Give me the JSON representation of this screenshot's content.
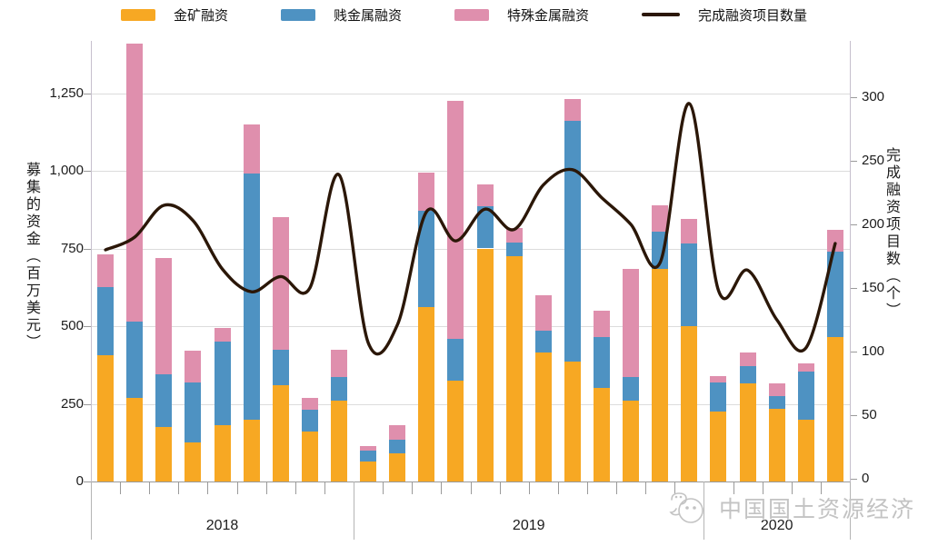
{
  "legend": {
    "items": [
      {
        "label": "金矿融资",
        "color": "#F7A823",
        "marker": "bar"
      },
      {
        "label": "贱金属融资",
        "color": "#4E92C2",
        "marker": "bar"
      },
      {
        "label": "特殊金属融资",
        "color": "#DF8FAD",
        "marker": "bar"
      },
      {
        "label": "完成融资项目数量",
        "color": "#2B1708",
        "marker": "line"
      }
    ]
  },
  "y_axis_left": {
    "title": "募集的资金（百万美元）",
    "ticks": [
      "0",
      "250",
      "500",
      "750",
      "1,000",
      "1,250"
    ],
    "tick_values": [
      0,
      250,
      500,
      750,
      1000,
      1250
    ]
  },
  "y_axis_right": {
    "title": "完成融资项目数（个）",
    "ticks": [
      "0",
      "50",
      "100",
      "150",
      "200",
      "250",
      "300"
    ],
    "tick_values": [
      0,
      50,
      100,
      150,
      200,
      250,
      300
    ]
  },
  "x_axis": {
    "groups": [
      {
        "label": "2018",
        "count": 9
      },
      {
        "label": "2019",
        "count": 12
      },
      {
        "label": "2020",
        "count": 5
      }
    ]
  },
  "watermark": {
    "text": "中国国土资源经济"
  },
  "chart_data": {
    "type": "bar",
    "stacked": true,
    "title": "",
    "xlabel": "",
    "ylabel_left": "募集的资金（百万美元）",
    "ylabel_right": "完成融资项目数（个）",
    "ylim_left": [
      0,
      1450
    ],
    "ylim_right": [
      0,
      300
    ],
    "grid": true,
    "legend_position": "top",
    "x_groups": [
      "2018 x9 monthly bars",
      "2019 x12 monthly bars",
      "2020 x5 monthly bars"
    ],
    "series": [
      {
        "name": "金矿融资",
        "color": "#F7A823",
        "values": [
          405,
          270,
          175,
          125,
          180,
          200,
          310,
          160,
          260,
          65,
          90,
          560,
          325,
          750,
          725,
          415,
          385,
          300,
          260,
          685,
          500,
          225,
          315,
          235,
          200,
          465
        ]
      },
      {
        "name": "贱金属融资",
        "color": "#4E92C2",
        "values": [
          220,
          245,
          170,
          195,
          270,
          790,
          115,
          70,
          75,
          35,
          45,
          310,
          135,
          135,
          45,
          70,
          775,
          165,
          75,
          120,
          265,
          95,
          55,
          40,
          155,
          275
        ]
      },
      {
        "name": "特殊金属融资",
        "color": "#DF8FAD",
        "values": [
          105,
          895,
          375,
          100,
          45,
          160,
          425,
          40,
          90,
          15,
          45,
          125,
          765,
          70,
          45,
          115,
          70,
          85,
          350,
          85,
          80,
          20,
          45,
          40,
          25,
          70
        ]
      }
    ],
    "line_series": {
      "name": "完成融资项目数量",
      "color": "#2B1708",
      "axis": "right",
      "values": [
        180,
        190,
        215,
        203,
        165,
        147,
        159,
        150,
        239,
        107,
        121,
        210,
        187,
        212,
        196,
        231,
        243,
        221,
        200,
        170,
        295,
        148,
        164,
        125,
        103,
        185
      ]
    }
  }
}
